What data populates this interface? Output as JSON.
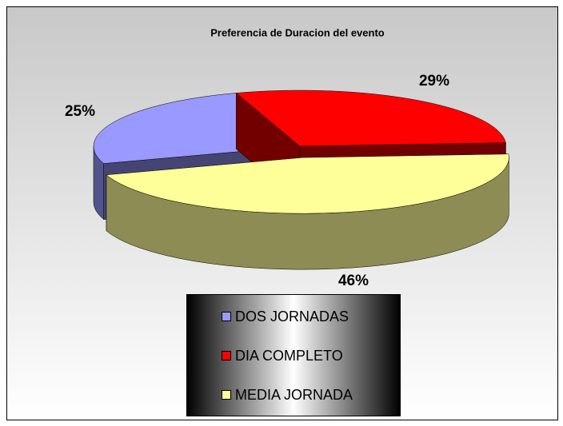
{
  "chart_data": {
    "type": "pie",
    "title": "Preferencia de Duracion del evento",
    "categories": [
      "DOS JORNADAS",
      "DIA COMPLETO",
      "MEDIA JORNADA"
    ],
    "values": [
      25,
      29,
      46
    ],
    "value_labels": [
      "25%",
      "29%",
      "46%"
    ],
    "colors": [
      "#9999ff",
      "#ff0000",
      "#ffff99"
    ],
    "legend": "bottom"
  }
}
